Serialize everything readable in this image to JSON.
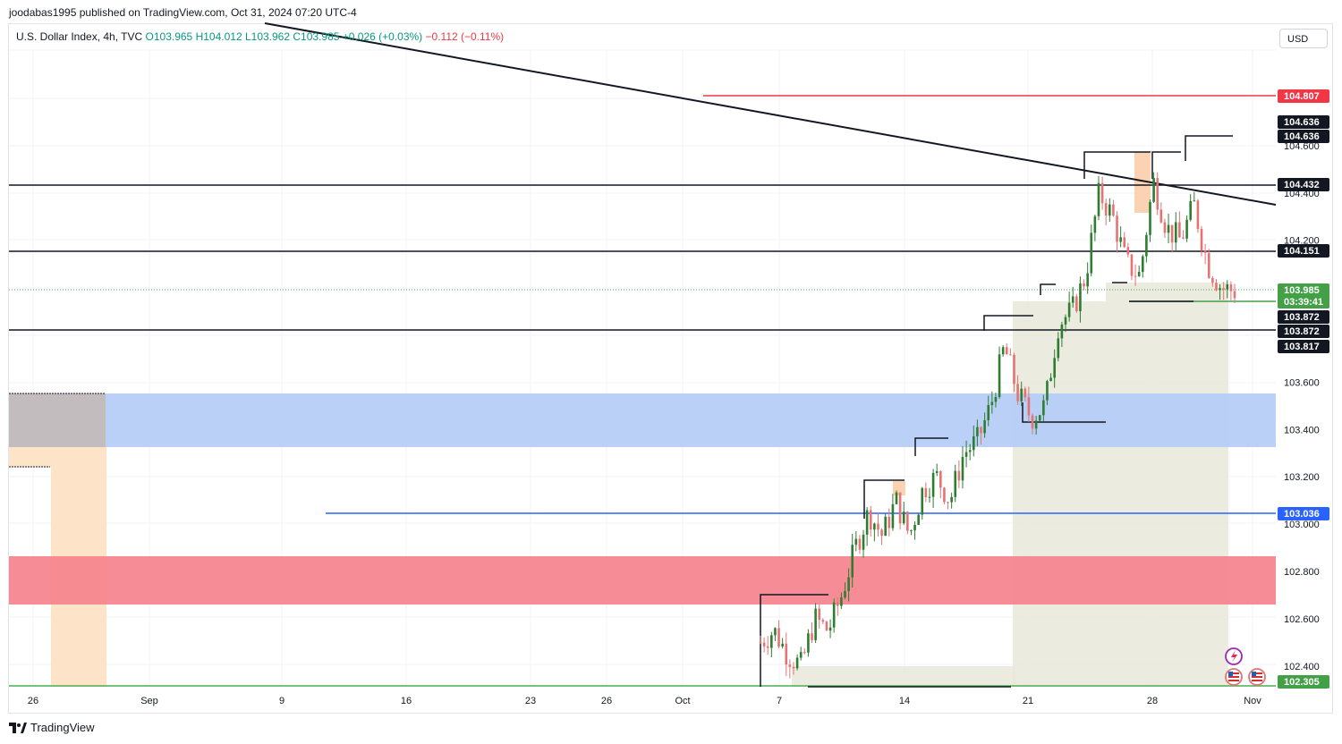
{
  "header": {
    "published_text": "joodabas1995 published on TradingView.com, Oct 31, 2024 07:20 UTC-4"
  },
  "legend": {
    "symbol": "U.S. Dollar Index, 4h, TVC",
    "open": "O103.965",
    "high": "H104.012",
    "low": "L103.962",
    "close": "C103.985",
    "change": "+0.026 (+0.03%)",
    "change2": "−0.112 (−0.11%)"
  },
  "currency_selector": {
    "label": "USD"
  },
  "footer": {
    "brand": "TradingView"
  },
  "icons": [
    "lightning-event-icon",
    "us-flag-event-icon",
    "tradingview-logo-icon"
  ],
  "colors": {
    "up": "#089981",
    "down": "#f23645",
    "candle_up": "#2e7d32",
    "candle_down": "#e57373",
    "red_line": "#f23645",
    "blue_line": "#2962ff",
    "green_line": "#4caf50",
    "black_line": "#131722",
    "blue_zone": "#b7cdf6",
    "red_zone": "#f6868f",
    "orange_zone": "#fde3c8",
    "grey_zone": "#e9e7d9"
  },
  "chart_data": {
    "type": "candlestick",
    "title": "U.S. Dollar Index, 4h, TVC",
    "y_ticks": [
      "102.400",
      "102.600",
      "102.800",
      "103.000",
      "103.200",
      "103.400",
      "103.600",
      "104.200",
      "104.400",
      "104.600",
      "104.800"
    ],
    "ylim": [
      102.3,
      105.0
    ],
    "x_ticks": [
      "26",
      "Sep",
      "9",
      "16",
      "23",
      "26",
      "Oct",
      "7",
      "14",
      "21",
      "28",
      "Nov"
    ],
    "price_tags": [
      {
        "price": 104.807,
        "label": "104.807",
        "color": "#f23645"
      },
      {
        "price": 104.636,
        "label": "104.636",
        "color": "#131722"
      },
      {
        "price": 104.636,
        "label": "104.636",
        "color": "#131722"
      },
      {
        "price": 104.432,
        "label": "104.432",
        "color": "#131722"
      },
      {
        "price": 104.151,
        "label": "104.151",
        "color": "#131722"
      },
      {
        "price": 103.985,
        "label": "103.985",
        "color": "#43a047",
        "countdown": "03:39:41"
      },
      {
        "price": 103.872,
        "label": "103.872",
        "color": "#131722"
      },
      {
        "price": 103.872,
        "label": "103.872",
        "color": "#131722"
      },
      {
        "price": 103.817,
        "label": "103.817",
        "color": "#131722"
      },
      {
        "price": 103.036,
        "label": "103.036",
        "color": "#2962ff"
      },
      {
        "price": 102.305,
        "label": "102.305",
        "color": "#43a047"
      }
    ],
    "horizontal_levels": [
      {
        "price": 104.807,
        "color": "#f23645"
      },
      {
        "price": 104.432,
        "color": "#131722"
      },
      {
        "price": 104.151,
        "color": "#131722"
      },
      {
        "price": 103.817,
        "color": "#131722"
      },
      {
        "price": 103.036,
        "color": "#2962ff"
      },
      {
        "price": 102.305,
        "color": "#4caf50"
      }
    ],
    "zones": [
      {
        "name": "blue-zone",
        "from": 103.325,
        "to": 103.55,
        "color": "#b7cdf6"
      },
      {
        "name": "red-zone",
        "from": 102.65,
        "to": 102.85,
        "color": "#f6868f"
      }
    ],
    "trendline": {
      "from_price": 105.05,
      "to_price": 104.36
    },
    "close_series": [
      102.5,
      102.55,
      102.45,
      102.4,
      102.6,
      102.55,
      102.7,
      102.9,
      103.05,
      102.95,
      103.1,
      102.95,
      103.15,
      103.2,
      103.1,
      103.3,
      103.35,
      103.5,
      103.75,
      103.55,
      103.45,
      103.5,
      103.85,
      103.9,
      104.05,
      104.4,
      104.3,
      104.1,
      104.05,
      104.45,
      104.25,
      104.2,
      104.35,
      104.1,
      104.0,
      103.985
    ]
  }
}
